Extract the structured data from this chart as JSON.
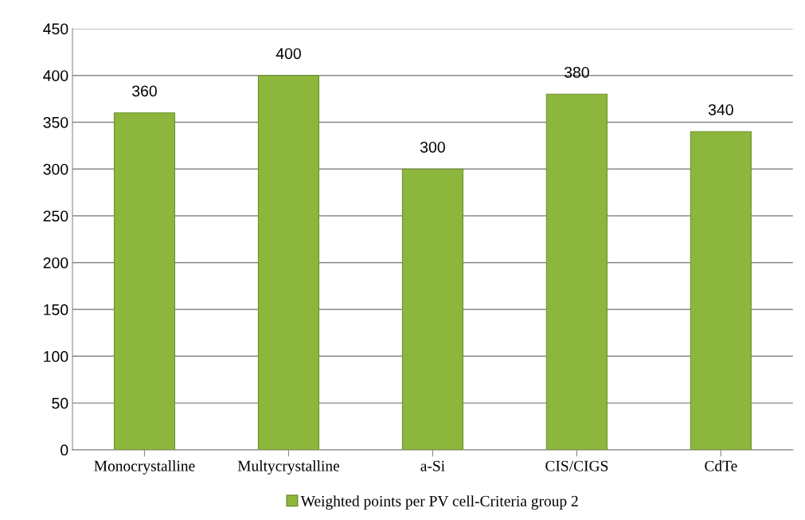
{
  "chart_data": {
    "type": "bar",
    "categories": [
      "Monocrystalline",
      "Multycrystalline",
      "a-Si",
      "CIS/CIGS",
      "CdTe"
    ],
    "series": [
      {
        "name": "Weighted points per PV cell-Criteria group 2",
        "color": "#8db63c",
        "values": [
          360,
          400,
          300,
          380,
          340
        ]
      }
    ],
    "ylim": [
      0,
      450
    ],
    "yticks": [
      0,
      50,
      100,
      150,
      200,
      250,
      300,
      350,
      400,
      450
    ],
    "grid": "y",
    "legend": "bottom",
    "data_labels": true
  }
}
